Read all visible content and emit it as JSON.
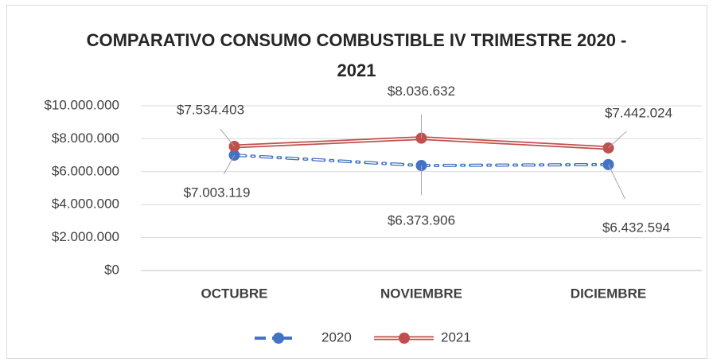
{
  "chart_data": {
    "type": "line",
    "title": "COMPARATIVO CONSUMO COMBUSTIBLE IV TRIMESTRE 2020 - 2021",
    "categories": [
      "OCTUBRE",
      "NOVIEMBRE",
      "DICIEMBRE"
    ],
    "series": [
      {
        "name": "2020",
        "color": "#4472c4",
        "values": [
          7003119,
          6373906,
          6432594
        ],
        "value_labels": [
          "$7.003.119",
          "$6.373.906",
          "$6.432.594"
        ]
      },
      {
        "name": "2021",
        "color": "#c0504d",
        "values": [
          7534403,
          8036632,
          7442024
        ],
        "value_labels": [
          "$7.534.403",
          "$8.036.632",
          "$7.442.024"
        ]
      }
    ],
    "ylim": [
      0,
      10000000
    ],
    "yticks": [
      {
        "value": 0,
        "label": "$0"
      },
      {
        "value": 2000000,
        "label": "$2.000.000"
      },
      {
        "value": 4000000,
        "label": "$4.000.000"
      },
      {
        "value": 6000000,
        "label": "$6.000.000"
      },
      {
        "value": 8000000,
        "label": "$8.000.000"
      },
      {
        "value": 10000000,
        "label": "$10.000.000"
      }
    ],
    "grid": true,
    "legend": "bottom"
  }
}
